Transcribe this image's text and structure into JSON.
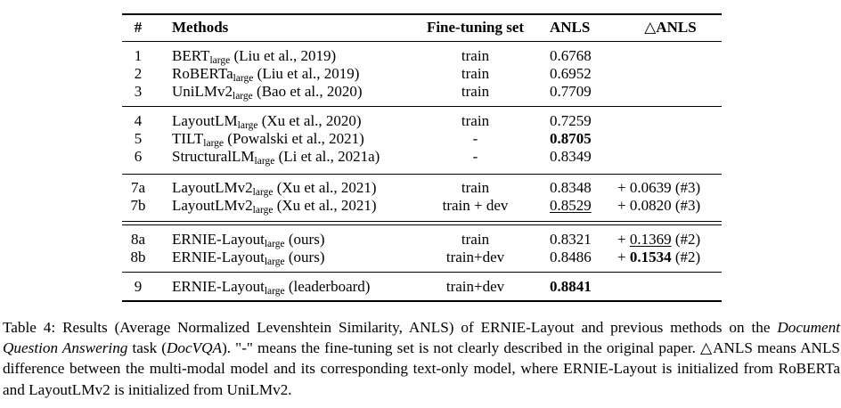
{
  "table": {
    "headers": {
      "num": "#",
      "methods": "Methods",
      "finetune": "Fine-tuning set",
      "anls": "ANLS",
      "delta": "△ANLS"
    },
    "rows": [
      {
        "num": "1",
        "model": "BERT",
        "size": "large",
        "cite": " (Liu et al., 2019)",
        "ft": "train",
        "anls": "0.6768",
        "delta_sign": "",
        "delta_val": "",
        "delta_ref": ""
      },
      {
        "num": "2",
        "model": "RoBERTa",
        "size": "large",
        "cite": " (Liu et al., 2019)",
        "ft": "train",
        "anls": "0.6952",
        "delta_sign": "",
        "delta_val": "",
        "delta_ref": ""
      },
      {
        "num": "3",
        "model": "UniLMv2",
        "size": "large",
        "cite": " (Bao et al., 2020)",
        "ft": "train",
        "anls": "0.7709",
        "delta_sign": "",
        "delta_val": "",
        "delta_ref": ""
      },
      {
        "num": "4",
        "model": "LayoutLM",
        "size": "large",
        "cite": " (Xu et al., 2020)",
        "ft": "train",
        "anls": "0.7259",
        "delta_sign": "",
        "delta_val": "",
        "delta_ref": ""
      },
      {
        "num": "5",
        "model": "TILT",
        "size": "large",
        "cite": " (Powalski et al., 2021)",
        "ft": "-",
        "anls": "0.8705",
        "delta_sign": "",
        "delta_val": "",
        "delta_ref": ""
      },
      {
        "num": "6",
        "model": "StructuralLM",
        "size": "large",
        "cite": " (Li et al., 2021a)",
        "ft": "-",
        "anls": "0.8349",
        "delta_sign": "",
        "delta_val": "",
        "delta_ref": ""
      },
      {
        "num": "7a",
        "model": "LayoutLMv2",
        "size": "large",
        "cite": " (Xu et al., 2021)",
        "ft": "train",
        "anls": "0.8348",
        "delta_sign": "+ ",
        "delta_val": "0.0639",
        "delta_ref": " (#3)"
      },
      {
        "num": "7b",
        "model": "LayoutLMv2",
        "size": "large",
        "cite": " (Xu et al., 2021)",
        "ft": "train + dev",
        "anls": "0.8529",
        "delta_sign": "+ ",
        "delta_val": "0.0820",
        "delta_ref": " (#3)"
      },
      {
        "num": "8a",
        "model": "ERNIE-Layout",
        "size": "large",
        "cite": " (ours)",
        "ft": "train",
        "anls": "0.8321",
        "delta_sign": "+ ",
        "delta_val": "0.1369",
        "delta_ref": " (#2)"
      },
      {
        "num": "8b",
        "model": "ERNIE-Layout",
        "size": "large",
        "cite": " (ours)",
        "ft": "train+dev",
        "anls": "0.8486",
        "delta_sign": "+ ",
        "delta_val": "0.1534",
        "delta_ref": " (#2)"
      },
      {
        "num": "9",
        "model": "ERNIE-Layout",
        "size": "large",
        "cite": " (leaderboard)",
        "ft": "train+dev",
        "anls": "0.8841",
        "delta_sign": "",
        "delta_val": "",
        "delta_ref": ""
      }
    ]
  },
  "caption": {
    "p1": "Table 4: Results (Average Normalized Levenshtein Similarity, ANLS) of ERNIE-Layout and previous methods on the ",
    "task": "Document Question Answering",
    "p2": " task (",
    "dataset": "DocVQA",
    "p3": "). \"-\" means the fine-tuning set is not clearly described in the original paper. △ANLS means ANLS difference between the multi-modal model and its corresponding text-only model, where ERNIE-Layout is initialized from RoBERTa and LayoutLMv2 is initialized from UniLMv2."
  }
}
